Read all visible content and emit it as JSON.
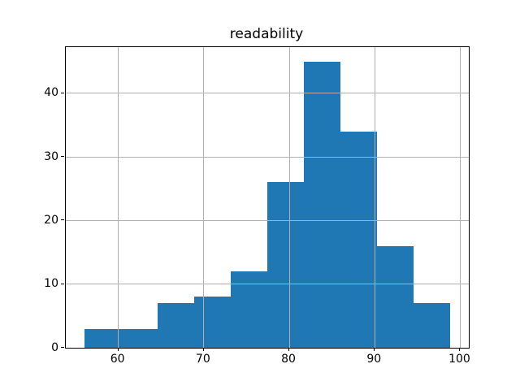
{
  "chart_data": {
    "type": "bar",
    "subtype": "histogram",
    "title": "readability",
    "bin_edges": [
      56.0,
      60.286,
      64.571,
      68.857,
      73.143,
      77.429,
      81.714,
      86.0,
      90.286,
      94.571,
      98.857
    ],
    "counts": [
      3,
      3,
      7,
      8,
      12,
      26,
      45,
      34,
      16,
      7
    ],
    "xlabel": "",
    "ylabel": "",
    "xlim": [
      53.857,
      101.0
    ],
    "ylim": [
      0,
      47.25
    ],
    "xticks": [
      60,
      70,
      80,
      90,
      100
    ],
    "yticks": [
      0,
      10,
      20,
      30,
      40
    ],
    "grid": true,
    "grid_above_bars": true,
    "legend": null,
    "colors": {
      "bar": "#1f77b4",
      "grid": "#b0b0b0",
      "spine": "#000000",
      "text": "#000000",
      "background": "#ffffff"
    }
  }
}
